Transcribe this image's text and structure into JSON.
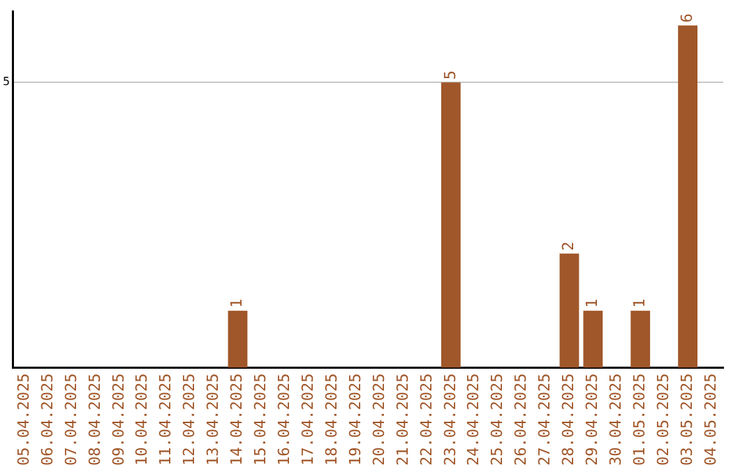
{
  "chart_data": {
    "type": "bar",
    "categories": [
      "05.04.2025",
      "06.04.2025",
      "07.04.2025",
      "08.04.2025",
      "09.04.2025",
      "10.04.2025",
      "11.04.2025",
      "12.04.2025",
      "13.04.2025",
      "14.04.2025",
      "15.04.2025",
      "16.04.2025",
      "17.04.2025",
      "18.04.2025",
      "19.04.2025",
      "20.04.2025",
      "21.04.2025",
      "22.04.2025",
      "23.04.2025",
      "24.04.2025",
      "25.04.2025",
      "26.04.2025",
      "27.04.2025",
      "28.04.2025",
      "29.04.2025",
      "30.04.2025",
      "01.05.2025",
      "02.05.2025",
      "03.05.2025",
      "04.05.2025"
    ],
    "values": [
      0,
      0,
      0,
      0,
      0,
      0,
      0,
      0,
      0,
      1,
      0,
      0,
      0,
      0,
      0,
      0,
      0,
      0,
      5,
      0,
      0,
      0,
      0,
      2,
      1,
      0,
      1,
      0,
      6,
      0
    ],
    "value_labels": [
      null,
      null,
      null,
      null,
      null,
      null,
      null,
      null,
      null,
      "1",
      null,
      null,
      null,
      null,
      null,
      null,
      null,
      null,
      "5",
      null,
      null,
      null,
      null,
      "2",
      "1",
      null,
      "1",
      null,
      "6",
      null
    ],
    "color": "#a0572a",
    "ylim": [
      0,
      6.25
    ],
    "yticks": [
      5
    ],
    "grid": "y",
    "legend": false
  }
}
